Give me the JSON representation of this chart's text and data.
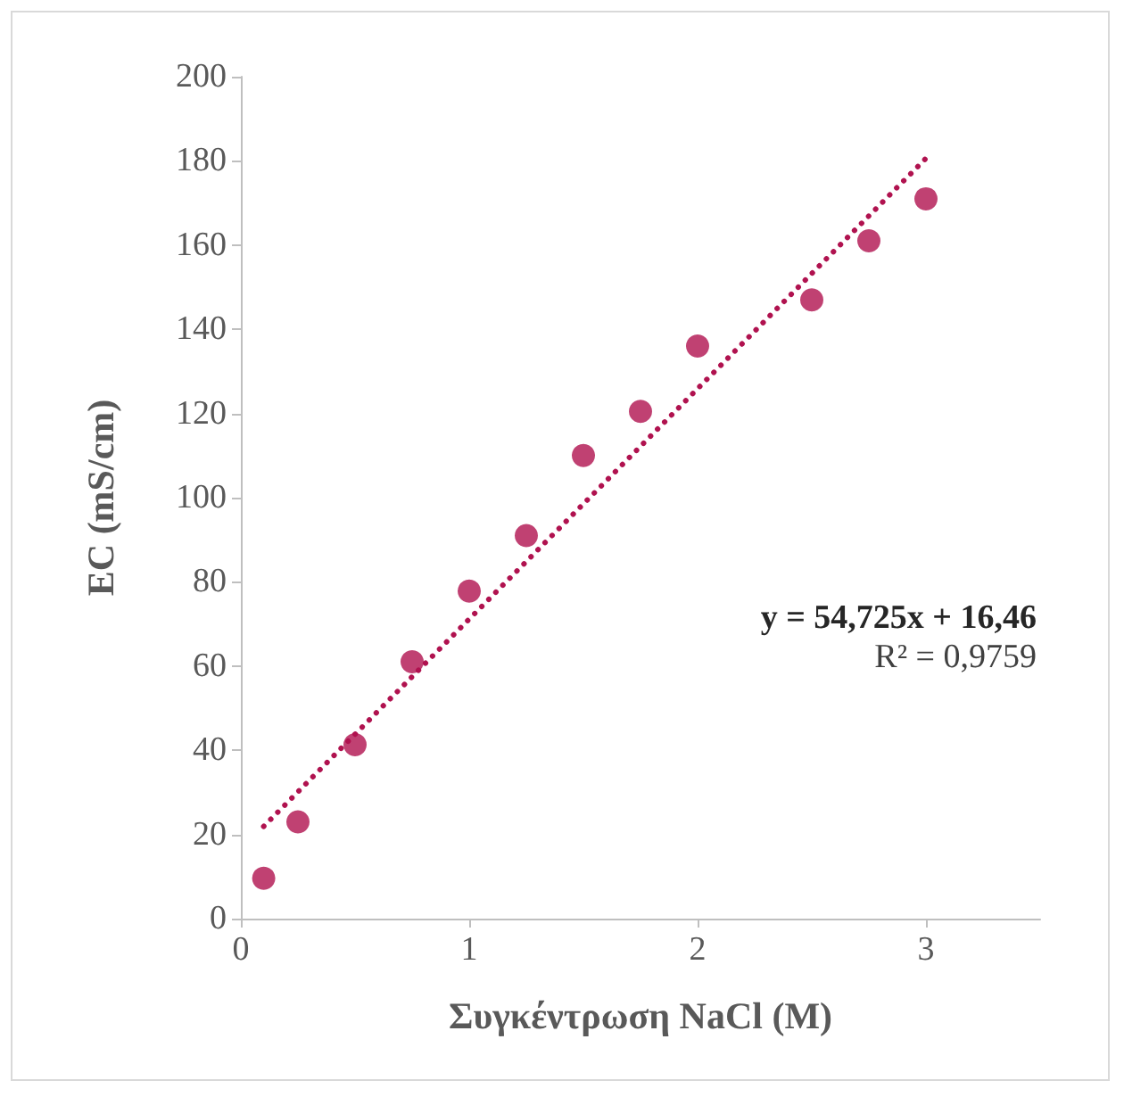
{
  "chart_data": {
    "type": "scatter",
    "xlabel": "Συγκέντρωση NaCl (M)",
    "ylabel": "EC (mS/cm)",
    "xlim": [
      0,
      3.5
    ],
    "xticks": [
      0,
      1,
      2,
      3
    ],
    "ylim": [
      0,
      200
    ],
    "yticks": [
      0,
      20,
      40,
      60,
      80,
      100,
      120,
      140,
      160,
      180,
      200
    ],
    "grid": false,
    "marker": "circle",
    "series": [
      {
        "color": "#b0124f",
        "x": [
          0.1,
          0.25,
          0.5,
          0.75,
          1.0,
          1.25,
          1.5,
          1.75,
          2.0,
          2.5,
          2.75,
          3.0
        ],
        "values": [
          9.6,
          23,
          41.3,
          61,
          77.8,
          91,
          110,
          120.5,
          136,
          147,
          161,
          171
        ]
      },
      {
        "type": "line",
        "color": "#b0124f",
        "line_style": "dotted",
        "marker": "none",
        "x": [
          0.1,
          3.0
        ],
        "values": [
          21.9,
          180.6
        ]
      }
    ],
    "annotations": [
      "y = 54,725x + 16,46",
      "R² = 0,9759"
    ]
  }
}
